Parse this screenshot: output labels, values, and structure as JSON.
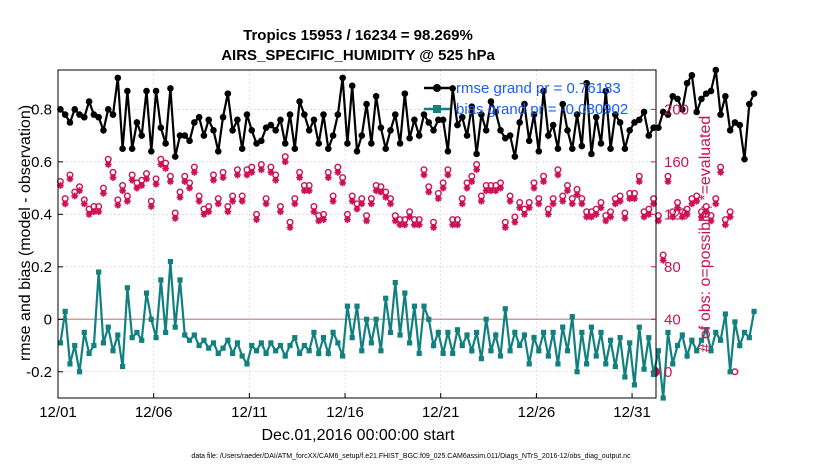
{
  "chart_data": {
    "type": "line",
    "title_line1": "Tropics 15953 / 16234 = 98.269%",
    "title_line2": "AIRS_SPECIFIC_HUMIDITY @ 525 hPa",
    "xlabel": "Dec.01,2016 00:00:00 start",
    "ylabel_left": "rmse and bias (model - observation)",
    "ylabel_right": "# of obs: o=possible; *=evaluated",
    "x_tick_labels": [
      "12/01",
      "12/06",
      "12/11",
      "12/16",
      "12/21",
      "12/26",
      "12/31"
    ],
    "x_tick_days": [
      1,
      6,
      11,
      16,
      21,
      26,
      31
    ],
    "xlim": [
      1,
      32.25
    ],
    "ylim_left": [
      -0.3,
      0.95
    ],
    "y_ticks_left": [
      "-0.2",
      "0",
      "0.2",
      "0.4",
      "0.6",
      "0.8"
    ],
    "y_tick_values_left": [
      -0.2,
      0,
      0.2,
      0.4,
      0.6,
      0.8
    ],
    "ylim_right": [
      -20,
      230
    ],
    "y_ticks_right": [
      "0",
      "40",
      "80",
      "120",
      "160",
      "200"
    ],
    "y_tick_values_right": [
      0,
      40,
      80,
      120,
      160,
      200
    ],
    "x_step_days": 0.25,
    "rmse": {
      "name": "rmse grand pr = 0.76183",
      "color": "#000000",
      "values": [
        0.8,
        0.78,
        0.75,
        0.8,
        0.78,
        0.77,
        0.83,
        0.78,
        0.77,
        0.72,
        0.8,
        0.78,
        0.92,
        0.65,
        0.87,
        0.65,
        0.75,
        0.7,
        0.87,
        0.64,
        0.87,
        0.73,
        0.67,
        0.88,
        0.62,
        0.7,
        0.7,
        0.68,
        0.75,
        0.77,
        0.7,
        0.76,
        0.72,
        0.64,
        0.77,
        0.86,
        0.72,
        0.76,
        0.65,
        0.78,
        0.72,
        0.67,
        0.68,
        0.73,
        0.74,
        0.72,
        0.76,
        0.67,
        0.78,
        0.65,
        0.83,
        0.78,
        0.72,
        0.76,
        0.67,
        0.78,
        0.65,
        0.7,
        0.78,
        0.92,
        0.67,
        0.89,
        0.64,
        0.7,
        0.82,
        0.67,
        0.85,
        0.73,
        0.65,
        0.72,
        0.78,
        0.67,
        0.86,
        0.69,
        0.76,
        0.7,
        0.78,
        0.75,
        0.72,
        0.76,
        0.76,
        0.64,
        0.88,
        0.74,
        0.77,
        0.7,
        0.81,
        0.63,
        0.78,
        0.72,
        0.83,
        0.79,
        0.72,
        0.69,
        0.7,
        0.62,
        0.75,
        0.82,
        0.68,
        0.78,
        0.64,
        0.87,
        0.7,
        0.74,
        0.65,
        0.82,
        0.72,
        0.65,
        0.78,
        0.66,
        0.9,
        0.63,
        0.77,
        0.67,
        0.87,
        0.65,
        0.78,
        0.75,
        0.65,
        0.72,
        0.75,
        0.76,
        0.79,
        0.7,
        0.73,
        0.73,
        0.79,
        0.78,
        0.85,
        0.84,
        0.8,
        0.9,
        0.93,
        0.79,
        0.84,
        0.86,
        0.87,
        0.95,
        0.78,
        0.85,
        0.72,
        0.75,
        0.74,
        0.61,
        0.82,
        0.86
      ]
    },
    "bias": {
      "name": "bias grand pr = -0.080902",
      "color": "#138080",
      "values": [
        -0.09,
        0.03,
        -0.17,
        -0.1,
        -0.2,
        -0.05,
        -0.13,
        -0.1,
        0.18,
        -0.09,
        -0.03,
        -0.12,
        -0.06,
        -0.18,
        0.12,
        -0.07,
        -0.05,
        -0.08,
        0.1,
        0.0,
        -0.07,
        0.15,
        -0.05,
        0.22,
        -0.03,
        0.15,
        -0.06,
        -0.08,
        -0.06,
        -0.1,
        -0.08,
        -0.11,
        -0.09,
        -0.13,
        -0.11,
        -0.08,
        -0.13,
        -0.09,
        -0.14,
        -0.17,
        -0.1,
        -0.12,
        -0.09,
        -0.13,
        -0.09,
        -0.12,
        -0.1,
        -0.14,
        -0.1,
        -0.07,
        -0.13,
        -0.1,
        -0.12,
        -0.05,
        -0.13,
        -0.07,
        -0.13,
        -0.05,
        -0.09,
        -0.14,
        0.05,
        -0.07,
        0.05,
        -0.12,
        0.0,
        -0.09,
        0.0,
        -0.12,
        0.08,
        -0.05,
        0.14,
        -0.06,
        0.1,
        -0.09,
        0.05,
        -0.13,
        0.05,
        0.0,
        -0.1,
        -0.05,
        -0.13,
        -0.05,
        -0.13,
        -0.04,
        -0.1,
        -0.06,
        -0.12,
        -0.05,
        -0.15,
        0.0,
        -0.12,
        -0.06,
        -0.14,
        0.04,
        -0.12,
        -0.05,
        -0.1,
        -0.06,
        -0.17,
        -0.07,
        -0.12,
        -0.05,
        -0.14,
        -0.05,
        -0.17,
        -0.03,
        -0.12,
        0.01,
        -0.2,
        -0.05,
        -0.17,
        -0.03,
        -0.14,
        -0.05,
        -0.17,
        -0.08,
        -0.18,
        -0.07,
        -0.22,
        -0.09,
        -0.25,
        -0.03,
        -0.19,
        -0.07,
        -0.21,
        -0.12,
        -0.3,
        -0.05,
        -0.17,
        -0.1,
        -0.06,
        -0.14,
        -0.08,
        -0.12,
        -0.08,
        -0.04,
        -0.12,
        -0.05,
        -0.08,
        0.02,
        -0.2,
        -0.01,
        -0.1,
        -0.05,
        -0.07,
        0.03
      ]
    },
    "obs_evaluated": {
      "values": [
        142,
        128,
        147,
        134,
        138,
        128,
        120,
        122,
        122,
        136,
        158,
        148,
        127,
        138,
        130,
        146,
        140,
        142,
        147,
        126,
        143,
        158,
        155,
        145,
        117,
        133,
        145,
        140,
        152,
        130,
        120,
        122,
        146,
        128,
        148,
        122,
        130,
        150,
        130,
        150,
        152,
        116,
        154,
        128,
        152,
        146,
        122,
        160,
        110,
        128,
        148,
        138,
        138,
        122,
        115,
        116,
        148,
        130,
        152,
        144,
        116,
        130,
        124,
        128,
        115,
        128,
        138,
        137,
        133,
        128,
        115,
        112,
        112,
        118,
        112,
        112,
        150,
        137,
        110,
        132,
        140,
        150,
        112,
        112,
        128,
        140,
        145,
        154,
        130,
        138,
        138,
        138,
        140,
        110,
        130,
        114,
        125,
        120,
        125,
        140,
        128,
        145,
        120,
        128,
        150,
        130,
        138,
        128,
        135,
        128,
        118,
        118,
        120,
        125,
        115,
        118,
        128,
        130,
        117,
        132,
        132,
        145,
        118,
        120,
        128,
        115,
        85,
        145,
        118,
        125,
        118,
        120,
        128,
        130,
        118,
        122,
        115,
        128,
        152,
        112,
        118
      ]
    },
    "obs_possible": {
      "values": [
        145,
        132,
        150,
        137,
        141,
        131,
        124,
        126,
        126,
        140,
        162,
        152,
        131,
        142,
        134,
        150,
        144,
        146,
        151,
        130,
        147,
        162,
        159,
        149,
        121,
        137,
        149,
        144,
        156,
        134,
        124,
        126,
        150,
        132,
        152,
        126,
        134,
        154,
        134,
        154,
        156,
        120,
        158,
        132,
        156,
        150,
        126,
        164,
        114,
        132,
        152,
        142,
        142,
        126,
        119,
        120,
        152,
        134,
        156,
        148,
        120,
        134,
        128,
        132,
        119,
        132,
        142,
        141,
        137,
        132,
        119,
        116,
        116,
        122,
        116,
        116,
        154,
        141,
        114,
        136,
        144,
        154,
        116,
        116,
        132,
        144,
        149,
        158,
        134,
        142,
        142,
        142,
        144,
        114,
        134,
        118,
        129,
        124,
        129,
        144,
        132,
        149,
        124,
        132,
        154,
        134,
        142,
        132,
        139,
        132,
        122,
        122,
        124,
        129,
        119,
        122,
        132,
        134,
        121,
        136,
        136,
        149,
        122,
        124,
        132,
        119,
        89,
        149,
        122,
        129,
        122,
        124,
        132,
        134,
        122,
        126,
        119,
        132,
        156,
        116,
        122,
        0
      ]
    },
    "footer": "data file: /Users/raeder/DAI/ATM_forcXX/CAM6_setup/f.e21.FHIST_BGC.f09_025.CAM6assim.011/Diags_NTrS_2016-12/obs_diag_output.nc",
    "colors": {
      "rmse": "#000000",
      "bias": "#138080",
      "obs": "#cc1155",
      "zero_line": "#c8a0a0",
      "grid": "#cccccc",
      "legend_text": "#1a5cff"
    }
  }
}
